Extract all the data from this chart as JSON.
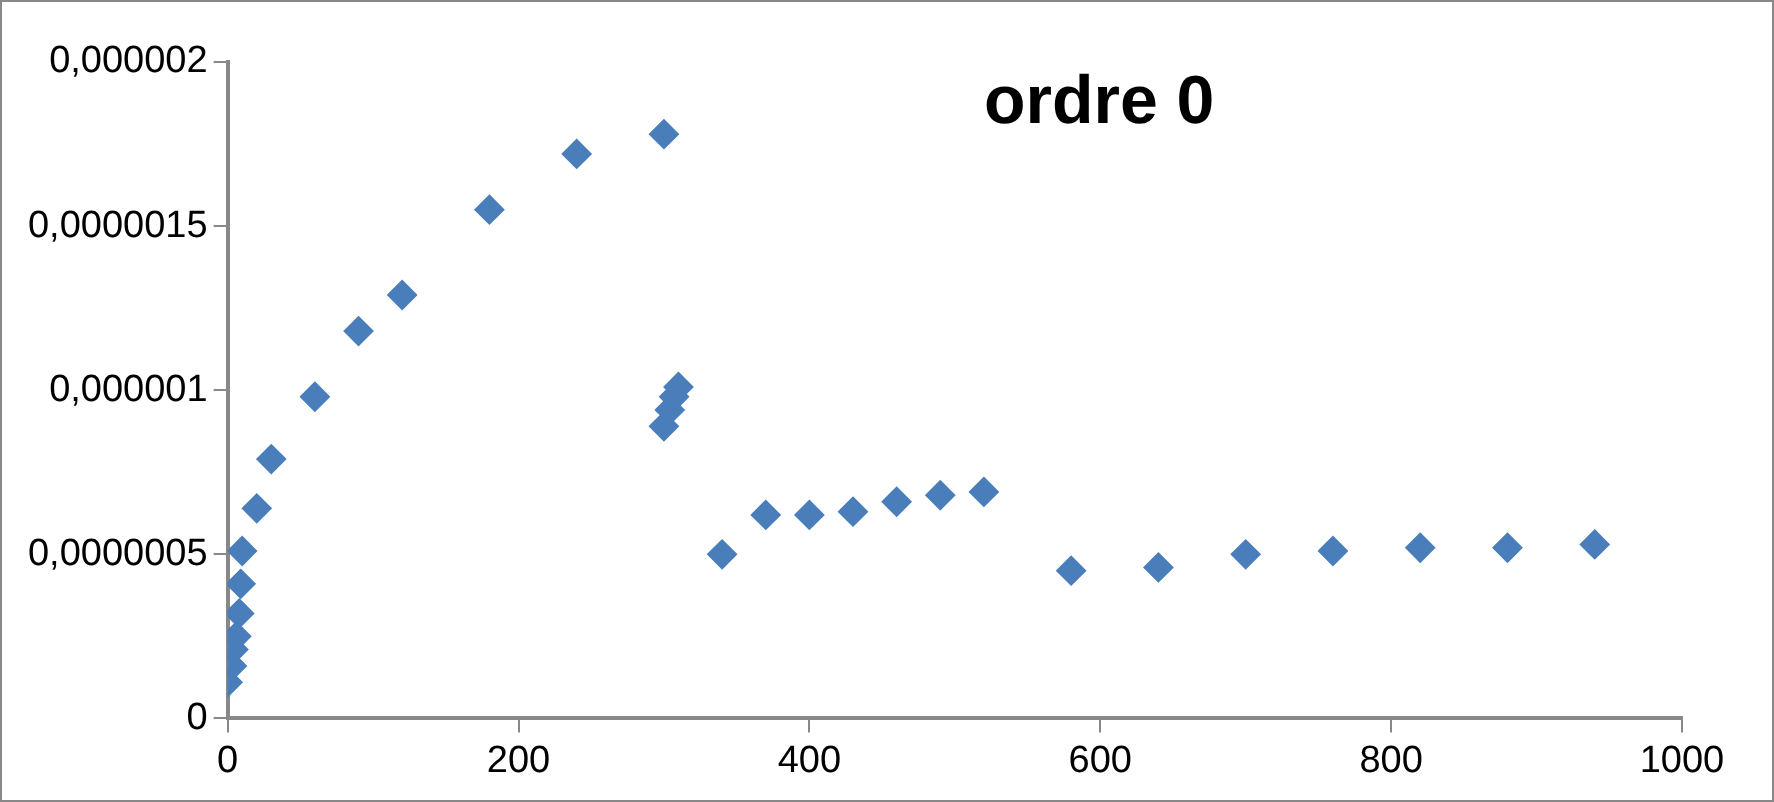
{
  "chart_data": {
    "type": "scatter",
    "title": "ordre 0",
    "marker": "diamond",
    "grid": false,
    "legend": false,
    "xlim": [
      0,
      1000
    ],
    "xticks": [
      0,
      200,
      400,
      600,
      800,
      1000
    ],
    "ylim": [
      0,
      2e-06
    ],
    "yticks": [
      {
        "value": 0,
        "label": "0"
      },
      {
        "value": 5e-07,
        "label": "0,0000005"
      },
      {
        "value": 1e-06,
        "label": "0,000001"
      },
      {
        "value": 1.5e-06,
        "label": "0,0000015"
      },
      {
        "value": 2e-06,
        "label": "0,000002"
      }
    ],
    "series": [
      {
        "color": "#4a7ebb",
        "x": [
          0,
          3,
          4,
          6,
          8,
          9,
          10,
          20,
          30,
          60,
          90,
          120,
          180,
          240,
          300,
          300,
          304,
          307,
          310,
          340,
          370,
          400,
          430,
          460,
          490,
          520,
          580,
          640,
          700,
          760,
          820,
          880,
          940
        ],
        "values": [
          1.1e-07,
          1.6e-07,
          2.1e-07,
          2.5e-07,
          3.2e-07,
          4.1e-07,
          5.1e-07,
          6.4e-07,
          7.9e-07,
          9.8e-07,
          1.18e-06,
          1.29e-06,
          1.55e-06,
          1.72e-06,
          1.78e-06,
          8.9e-07,
          9.4e-07,
          9.8e-07,
          1.01e-06,
          5e-07,
          6.2e-07,
          6.2e-07,
          6.3e-07,
          6.6e-07,
          6.8e-07,
          6.9e-07,
          4.5e-07,
          4.6e-07,
          5e-07,
          5.1e-07,
          5.2e-07,
          5.2e-07,
          5.3e-07
        ]
      }
    ]
  }
}
